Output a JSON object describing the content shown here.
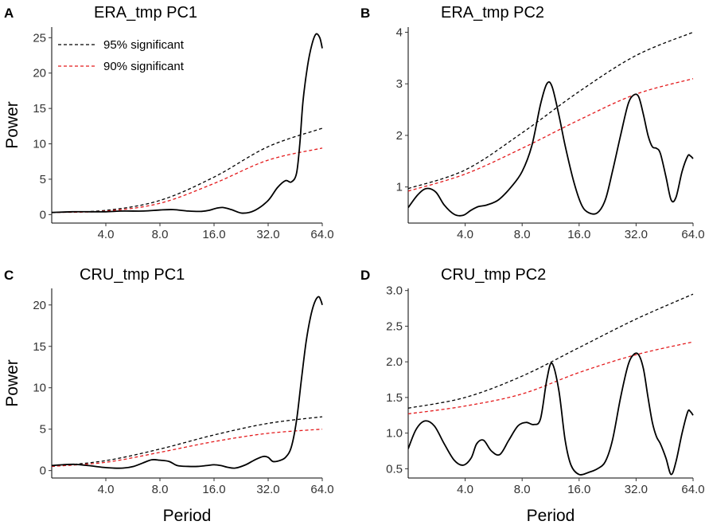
{
  "chart_data": [
    {
      "type": "line",
      "panel_label": "A",
      "title": "ERA_tmp  PC1",
      "xlabel": "",
      "ylabel": "Power",
      "x_scale": "log2",
      "xlim": [
        2.0,
        64.0
      ],
      "x_ticks": [
        4,
        8,
        16,
        32,
        64
      ],
      "x_tick_labels": [
        "4.0",
        "8.0",
        "16.0",
        "32.0",
        "64.0"
      ],
      "ylim": [
        -1.2,
        26.5
      ],
      "y_ticks": [
        0,
        5,
        10,
        15,
        20,
        25
      ],
      "y_tick_labels": [
        "0",
        "5",
        "10",
        "15",
        "20",
        "25"
      ],
      "legend": {
        "position": "top-left",
        "entries": [
          {
            "label": "95% significant",
            "color": "#000000",
            "dash": true
          },
          {
            "label": "90% significant",
            "color": "#e41a1c",
            "dash": true
          }
        ]
      },
      "series": [
        {
          "name": "95% significant",
          "color": "#000000",
          "dash": true,
          "x": [
            2.0,
            4.0,
            8.0,
            16.0,
            32.0,
            64.0
          ],
          "y": [
            0.3,
            0.6,
            2.0,
            5.3,
            9.6,
            12.2
          ]
        },
        {
          "name": "90% significant",
          "color": "#e41a1c",
          "dash": true,
          "x": [
            2.0,
            4.0,
            8.0,
            16.0,
            32.0,
            64.0
          ],
          "y": [
            0.3,
            0.5,
            1.6,
            4.4,
            7.7,
            9.4
          ]
        },
        {
          "name": "Power",
          "color": "#000000",
          "dash": false,
          "x": [
            2.0,
            2.6,
            3.3,
            4.0,
            5.0,
            6.5,
            8.0,
            9.5,
            11.5,
            13.5,
            15.0,
            16.5,
            18.0,
            20.0,
            23.0,
            27.0,
            32.0,
            36.0,
            40.0,
            43.0,
            46.0,
            48.0,
            50.0,
            53.0,
            56.0,
            59.0,
            62.0,
            64.0
          ],
          "y": [
            0.3,
            0.4,
            0.4,
            0.4,
            0.5,
            0.5,
            0.65,
            0.7,
            0.5,
            0.45,
            0.6,
            0.9,
            1.0,
            0.7,
            0.2,
            0.6,
            2.0,
            3.8,
            4.8,
            4.6,
            5.8,
            10.0,
            16.0,
            21.0,
            24.0,
            25.5,
            25.0,
            23.5
          ]
        }
      ]
    },
    {
      "type": "line",
      "panel_label": "B",
      "title": "ERA_tmp  PC2",
      "xlabel": "",
      "ylabel": "",
      "x_scale": "log2",
      "xlim": [
        2.0,
        64.0
      ],
      "x_ticks": [
        4,
        8,
        16,
        32,
        64
      ],
      "x_tick_labels": [
        "4.0",
        "8.0",
        "16.0",
        "32.0",
        "64.0"
      ],
      "ylim": [
        0.3,
        4.1
      ],
      "y_ticks": [
        1,
        2,
        3,
        4
      ],
      "y_tick_labels": [
        "1",
        "2",
        "3",
        "4"
      ],
      "series": [
        {
          "name": "95% significant",
          "color": "#000000",
          "dash": true,
          "x": [
            2.0,
            4.0,
            8.0,
            16.0,
            32.0,
            64.0
          ],
          "y": [
            0.97,
            1.33,
            2.05,
            2.85,
            3.55,
            4.0
          ]
        },
        {
          "name": "90% significant",
          "color": "#e41a1c",
          "dash": true,
          "x": [
            2.0,
            4.0,
            8.0,
            16.0,
            32.0,
            64.0
          ],
          "y": [
            0.92,
            1.25,
            1.75,
            2.3,
            2.8,
            3.1
          ]
        },
        {
          "name": "Power",
          "color": "#000000",
          "dash": false,
          "x": [
            2.0,
            2.25,
            2.5,
            2.8,
            3.1,
            3.5,
            3.9,
            4.3,
            4.7,
            5.2,
            6.0,
            7.0,
            8.0,
            9.0,
            10.0,
            10.8,
            11.5,
            12.5,
            13.5,
            15.0,
            16.5,
            18.0,
            20.0,
            22.0,
            24.0,
            26.5,
            29.0,
            31.0,
            33.0,
            35.0,
            37.0,
            39.0,
            41.0,
            43.0,
            46.0,
            49.0,
            52.0,
            56.0,
            60.0,
            62.0,
            64.0
          ],
          "y": [
            0.6,
            0.85,
            0.97,
            0.9,
            0.65,
            0.47,
            0.45,
            0.55,
            0.62,
            0.65,
            0.75,
            1.0,
            1.3,
            1.8,
            2.6,
            3.0,
            2.95,
            2.4,
            1.8,
            1.1,
            0.65,
            0.5,
            0.5,
            0.75,
            1.3,
            2.0,
            2.6,
            2.78,
            2.75,
            2.4,
            2.0,
            1.78,
            1.75,
            1.65,
            1.2,
            0.75,
            0.8,
            1.3,
            1.6,
            1.6,
            1.55
          ]
        }
      ]
    },
    {
      "type": "line",
      "panel_label": "C",
      "title": "CRU_tmp  PC1",
      "xlabel": "Period",
      "ylabel": "Power",
      "x_scale": "log2",
      "xlim": [
        2.0,
        64.0
      ],
      "x_ticks": [
        4,
        8,
        16,
        32,
        64
      ],
      "x_tick_labels": [
        "4.0",
        "8.0",
        "16.0",
        "32.0",
        "64.0"
      ],
      "ylim": [
        -0.9,
        22.0
      ],
      "y_ticks": [
        0,
        5,
        10,
        15,
        20
      ],
      "y_tick_labels": [
        "0",
        "5",
        "10",
        "15",
        "20"
      ],
      "series": [
        {
          "name": "95% significant",
          "color": "#000000",
          "dash": true,
          "x": [
            2.0,
            4.0,
            8.0,
            16.0,
            32.0,
            64.0
          ],
          "y": [
            0.5,
            1.2,
            2.6,
            4.3,
            5.7,
            6.5
          ]
        },
        {
          "name": "90% significant",
          "color": "#e41a1c",
          "dash": true,
          "x": [
            2.0,
            4.0,
            8.0,
            16.0,
            32.0,
            64.0
          ],
          "y": [
            0.5,
            1.0,
            2.2,
            3.5,
            4.5,
            5.0
          ]
        },
        {
          "name": "Power",
          "color": "#000000",
          "dash": false,
          "x": [
            2.0,
            2.3,
            2.7,
            3.2,
            3.8,
            4.4,
            5.0,
            5.7,
            6.4,
            7.2,
            8.0,
            9.0,
            10.0,
            11.5,
            13.0,
            14.5,
            16.0,
            17.5,
            19.0,
            21.0,
            24.0,
            27.0,
            30.0,
            32.0,
            34.0,
            37.0,
            40.0,
            43.0,
            46.0,
            49.0,
            52.0,
            55.0,
            58.0,
            61.0,
            63.0,
            64.0
          ],
          "y": [
            0.6,
            0.7,
            0.75,
            0.6,
            0.4,
            0.3,
            0.3,
            0.5,
            0.9,
            1.3,
            1.25,
            1.1,
            0.6,
            0.5,
            0.5,
            0.6,
            0.7,
            0.6,
            0.4,
            0.3,
            0.7,
            1.3,
            1.7,
            1.6,
            1.1,
            1.2,
            1.6,
            2.8,
            6.0,
            11.0,
            15.5,
            18.5,
            20.3,
            21.0,
            20.5,
            20.0
          ]
        }
      ]
    },
    {
      "type": "line",
      "panel_label": "D",
      "title": "CRU_tmp  PC2",
      "xlabel": "Period",
      "ylabel": "",
      "x_scale": "log2",
      "xlim": [
        2.0,
        64.0
      ],
      "x_ticks": [
        4,
        8,
        16,
        32,
        64
      ],
      "x_tick_labels": [
        "4.0",
        "8.0",
        "16.0",
        "32.0",
        "64.0"
      ],
      "ylim": [
        0.37,
        3.03
      ],
      "y_ticks": [
        0.5,
        1.0,
        1.5,
        2.0,
        2.5,
        3.0
      ],
      "y_tick_labels": [
        "0.5",
        "1.0",
        "1.5",
        "2.0",
        "2.5",
        "3.0"
      ],
      "series": [
        {
          "name": "95% significant",
          "color": "#000000",
          "dash": true,
          "x": [
            2.0,
            4.0,
            8.0,
            16.0,
            32.0,
            64.0
          ],
          "y": [
            1.35,
            1.5,
            1.8,
            2.2,
            2.6,
            2.95
          ]
        },
        {
          "name": "90% significant",
          "color": "#e41a1c",
          "dash": true,
          "x": [
            2.0,
            4.0,
            8.0,
            16.0,
            32.0,
            64.0
          ],
          "y": [
            1.27,
            1.38,
            1.55,
            1.85,
            2.1,
            2.28
          ]
        },
        {
          "name": "Power",
          "color": "#000000",
          "dash": false,
          "x": [
            2.0,
            2.2,
            2.45,
            2.75,
            3.1,
            3.5,
            3.9,
            4.3,
            4.6,
            5.0,
            5.5,
            6.1,
            6.8,
            7.6,
            8.4,
            9.2,
            10.0,
            10.8,
            11.5,
            12.5,
            13.5,
            14.5,
            16.0,
            18.0,
            20.0,
            22.0,
            24.0,
            26.5,
            29.0,
            31.0,
            33.0,
            35.0,
            37.0,
            39.0,
            41.0,
            43.0,
            46.0,
            49.0,
            52.0,
            56.0,
            60.0,
            62.0,
            64.0
          ],
          "y": [
            0.78,
            1.05,
            1.17,
            1.1,
            0.85,
            0.62,
            0.55,
            0.65,
            0.85,
            0.9,
            0.75,
            0.7,
            0.9,
            1.1,
            1.15,
            1.12,
            1.2,
            1.75,
            1.98,
            1.6,
            0.9,
            0.55,
            0.42,
            0.45,
            0.5,
            0.6,
            0.9,
            1.5,
            1.95,
            2.1,
            2.1,
            1.9,
            1.5,
            1.15,
            0.95,
            0.85,
            0.65,
            0.42,
            0.6,
            1.0,
            1.3,
            1.3,
            1.25
          ]
        }
      ]
    }
  ]
}
